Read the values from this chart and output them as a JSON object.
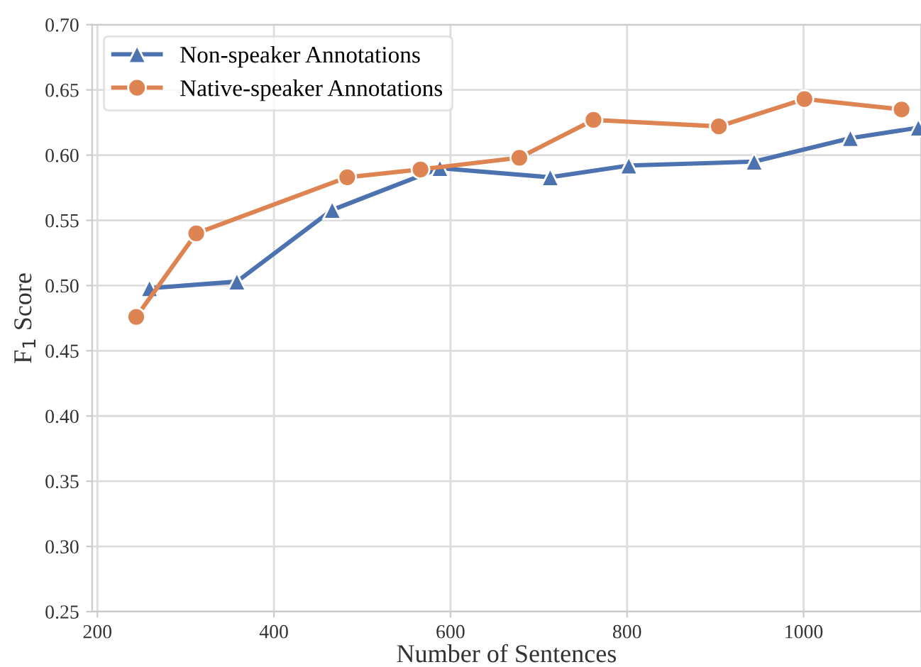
{
  "chart_data": {
    "type": "line",
    "xlabel": "Number of Sentences",
    "ylabel": "F$_{1}$ Score",
    "xlim": [
      194,
      1133
    ],
    "xticks": [
      200,
      400,
      600,
      800,
      1000
    ],
    "ylim": [
      0.25,
      0.7
    ],
    "yticks": [
      {
        "value": 0.25,
        "label": "0.25"
      },
      {
        "value": 0.3,
        "label": "0.30"
      },
      {
        "value": 0.35,
        "label": "0.35"
      },
      {
        "value": 0.4,
        "label": "0.40"
      },
      {
        "value": 0.45,
        "label": "0.45"
      },
      {
        "value": 0.5,
        "label": "0.50"
      },
      {
        "value": 0.55,
        "label": "0.55"
      },
      {
        "value": 0.6,
        "label": "0.60"
      },
      {
        "value": 0.65,
        "label": "0.65"
      },
      {
        "value": 0.7,
        "label": "0.70"
      }
    ],
    "grid": true,
    "legend": "top left",
    "series": [
      {
        "name": "Non-speaker Annotations",
        "color": "#4c72b0",
        "marker": "triangle",
        "x": [
          259,
          358,
          466,
          588,
          713,
          802,
          944,
          1053,
          1130
        ],
        "values": [
          0.498,
          0.503,
          0.558,
          0.59,
          0.583,
          0.592,
          0.595,
          0.613,
          0.621
        ]
      },
      {
        "name": "Native-speaker Annotations",
        "color": "#dd8452",
        "marker": "circle",
        "x": [
          244,
          312,
          483,
          566,
          678,
          762,
          904,
          1001,
          1111
        ],
        "values": [
          0.476,
          0.54,
          0.583,
          0.589,
          0.598,
          0.627,
          0.622,
          0.643,
          0.635
        ]
      }
    ]
  }
}
